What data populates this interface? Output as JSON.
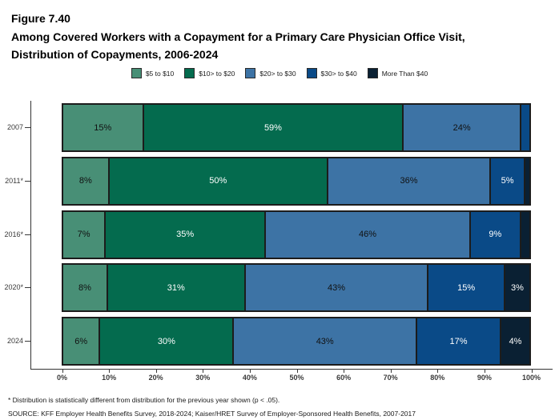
{
  "header": {
    "figure_label": "Figure 7.40",
    "title_line1": "Among Covered Workers with a Copayment for a Primary Care Physician Office Visit,",
    "title_line2": "Distribution of Copayments, 2006-2024"
  },
  "legend": {
    "items": [
      {
        "label": "$5 to $10",
        "color": "#488F76"
      },
      {
        "label": "$10> to $20",
        "color": "#046B4E"
      },
      {
        "label": "$20> to $30",
        "color": "#3D73A5"
      },
      {
        "label": "$30> to $40",
        "color": "#0A4A87"
      },
      {
        "label": "More Than $40",
        "color": "#0A2033"
      }
    ]
  },
  "chart_data": {
    "type": "bar",
    "orientation": "horizontal-stacked",
    "title": "Among Covered Workers with a Copayment for a Primary Care Physician Office Visit, Distribution of Copayments, 2006-2024",
    "categories": [
      "2007",
      "2011*",
      "2016*",
      "2020*",
      "2024"
    ],
    "series": [
      {
        "name": "$5 to $10",
        "color": "#488F76",
        "text_color": "#111111",
        "values": [
          15,
          8,
          7,
          8,
          6
        ]
      },
      {
        "name": "$10> to $20",
        "color": "#046B4E",
        "text_color": "#ffffff",
        "values": [
          59,
          50,
          35,
          31,
          30
        ]
      },
      {
        "name": "$20> to $30",
        "color": "#3D73A5",
        "text_color": "#111111",
        "values": [
          24,
          36,
          46,
          43,
          43
        ]
      },
      {
        "name": "$30> to $40",
        "color": "#0A4A87",
        "text_color": "#ffffff",
        "values": [
          2,
          5,
          9,
          15,
          17
        ]
      },
      {
        "name": "More Than $40",
        "color": "#0A2033",
        "text_color": "#ffffff",
        "values": [
          0,
          1,
          2,
          3,
          4
        ]
      }
    ],
    "data_labels": [
      [
        "15%",
        "59%",
        "24%",
        "",
        ""
      ],
      [
        "8%",
        "50%",
        "36%",
        "5%",
        ""
      ],
      [
        "7%",
        "35%",
        "46%",
        "9%",
        ""
      ],
      [
        "8%",
        "31%",
        "43%",
        "15%",
        "3%"
      ],
      [
        "6%",
        "30%",
        "43%",
        "17%",
        "4%"
      ]
    ],
    "xlabel": "",
    "ylabel": "",
    "xlim": [
      0,
      100
    ],
    "x_ticks": [
      "0%",
      "10%",
      "20%",
      "30%",
      "40%",
      "50%",
      "60%",
      "70%",
      "80%",
      "90%",
      "100%"
    ],
    "grid": false,
    "legend_position": "top-center"
  },
  "footnotes": {
    "note": "* Distribution is statistically different from distribution for the previous year shown (p < .05).",
    "source": "SOURCE: KFF Employer Health Benefits Survey, 2018-2024; Kaiser/HRET Survey of Employer-Sponsored Health Benefits, 2007-2017"
  }
}
